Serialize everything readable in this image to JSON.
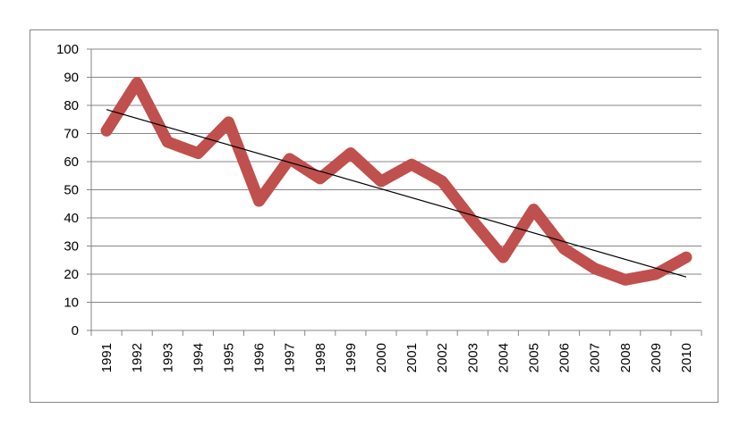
{
  "chart_data": {
    "type": "line",
    "categories": [
      "1991",
      "1992",
      "1993",
      "1994",
      "1995",
      "1996",
      "1997",
      "1998",
      "1999",
      "2000",
      "2001",
      "2002",
      "2003",
      "2004",
      "2005",
      "2006",
      "2007",
      "2008",
      "2009",
      "2010"
    ],
    "series": [
      {
        "values": [
          71,
          88,
          67,
          63,
          74,
          46,
          61,
          54,
          63,
          53,
          59,
          53,
          39,
          26,
          43,
          29,
          22,
          18,
          20,
          26
        ],
        "color": "#c0504d"
      }
    ],
    "trendline": {
      "type": "linear",
      "start": 78.5,
      "end": 19.0,
      "color": "#000000"
    },
    "yticks": [
      "0",
      "10",
      "20",
      "30",
      "40",
      "50",
      "60",
      "70",
      "80",
      "90",
      "100"
    ],
    "ylim": [
      0,
      100
    ],
    "grid": true,
    "legend": "none",
    "title": "",
    "xlabel": "",
    "ylabel": ""
  }
}
